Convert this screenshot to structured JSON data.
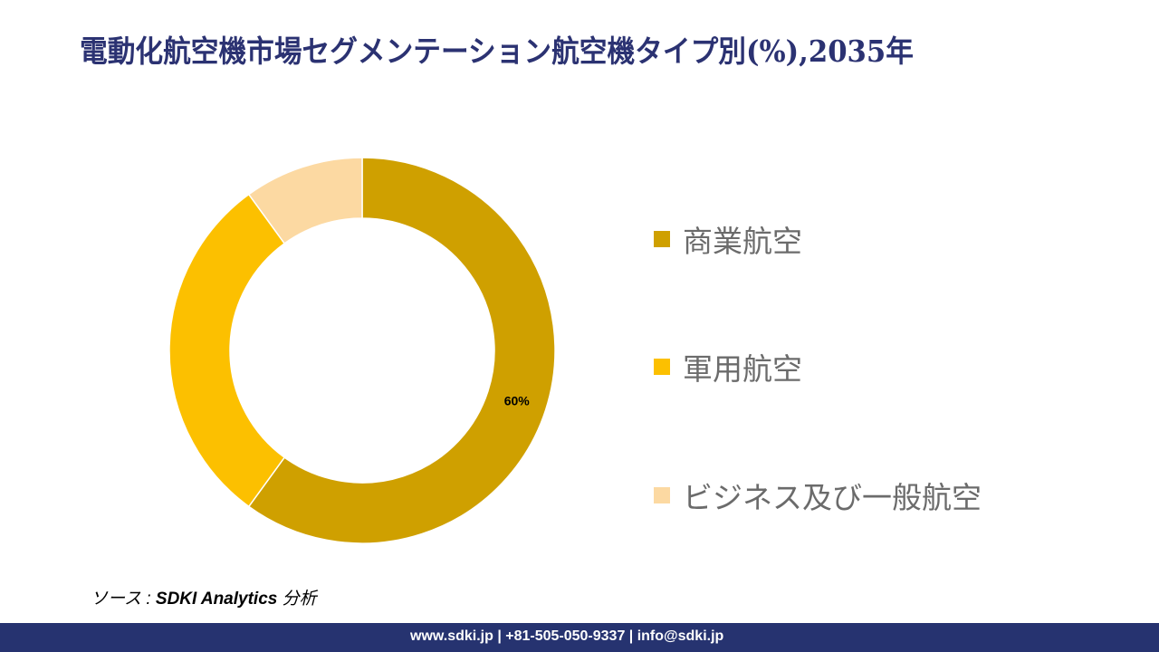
{
  "title": "電動化航空機市場セグメンテーション航空機タイプ別(%),2035年",
  "chart_data": {
    "type": "pie",
    "donut": true,
    "categories": [
      "商業航空",
      "軍用航空",
      "ビジネス及び一般航空"
    ],
    "values": [
      60,
      30,
      10
    ],
    "colors": [
      "#cfa000",
      "#fcc000",
      "#fcd9a2"
    ],
    "data_labels": [
      "60%",
      "",
      ""
    ],
    "legend_position": "right"
  },
  "source": {
    "prefix": "ソース : ",
    "name": "SDKI Analytics",
    "suffix": " 分析"
  },
  "footer": "www.sdki.jp | +81-505-050-9337 | info@sdki.jp"
}
